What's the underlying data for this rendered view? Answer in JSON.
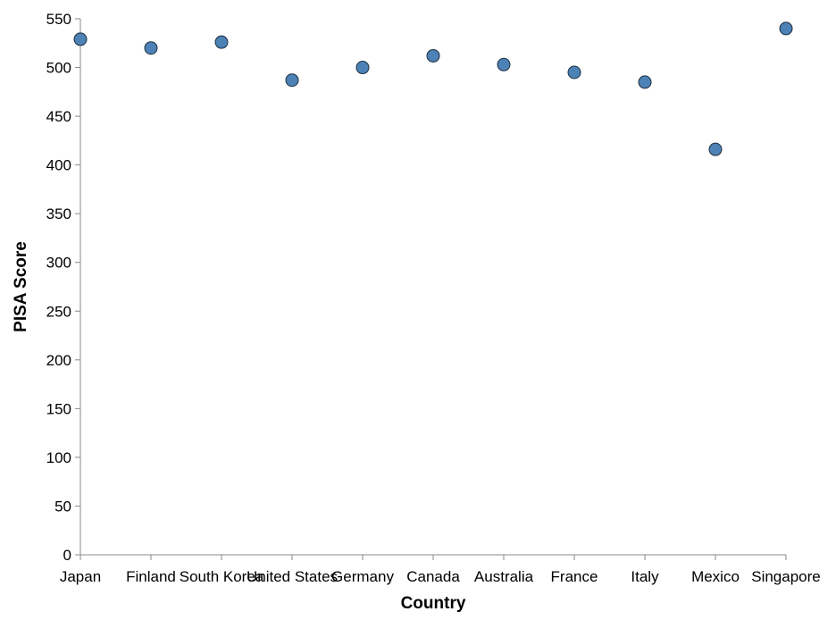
{
  "chart_data": {
    "type": "scatter",
    "title": "",
    "xlabel": "Country",
    "ylabel": "PISA Score",
    "categories": [
      "Japan",
      "Finland",
      "South Korea",
      "United States",
      "Germany",
      "Canada",
      "Australia",
      "France",
      "Italy",
      "Mexico",
      "Singapore"
    ],
    "series": [
      {
        "values": [
          529,
          520,
          526,
          487,
          500,
          512,
          503,
          495,
          485,
          416,
          540
        ]
      }
    ],
    "y_ticks": [
      0,
      50,
      100,
      150,
      200,
      250,
      300,
      350,
      400,
      450,
      500,
      550
    ],
    "ylim": [
      0,
      550
    ],
    "grid": false,
    "legend": "none",
    "colors": {
      "point_fill": "#4c82b5",
      "point_stroke": "#1f2f40",
      "axis": "#888888",
      "text": "#000000"
    }
  }
}
